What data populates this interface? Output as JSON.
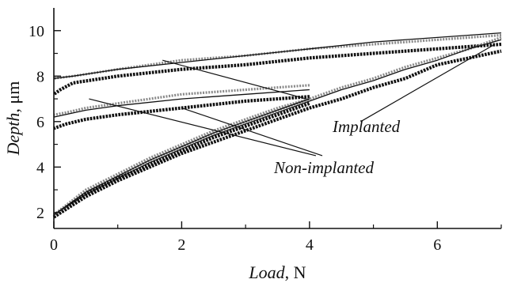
{
  "chart_data": {
    "type": "line",
    "xlabel_italic": "Load",
    "xlabel_unit": ", N",
    "ylabel_italic": "Depth",
    "ylabel_unit": ", μm",
    "xlim": [
      0,
      7
    ],
    "ylim": [
      1.3,
      11
    ],
    "x_ticks": [
      0,
      2,
      4,
      6
    ],
    "y_ticks": [
      2,
      4,
      6,
      8,
      10
    ],
    "x_minor_ticks": [
      1,
      3,
      5,
      7
    ],
    "y_minor_ticks": [
      3,
      5,
      7,
      9
    ],
    "annotations": {
      "implanted": "Implanted",
      "non_implanted": "Non-implanted"
    },
    "series": [
      {
        "style": "dark-dotted",
        "loading": [
          [
            0,
            1.8
          ],
          [
            0.5,
            2.7
          ],
          [
            1,
            3.4
          ],
          [
            1.5,
            4.0
          ],
          [
            2,
            4.6
          ],
          [
            2.5,
            5.1
          ],
          [
            3,
            5.6
          ],
          [
            3.5,
            6.1
          ],
          [
            4,
            6.6
          ],
          [
            4.5,
            7.0
          ],
          [
            5,
            7.5
          ],
          [
            5.5,
            7.9
          ],
          [
            6,
            8.5
          ],
          [
            6.5,
            8.8
          ],
          [
            7,
            9.1
          ]
        ],
        "unloading": [
          [
            7,
            9.4
          ],
          [
            6,
            9.2
          ],
          [
            5,
            9.0
          ],
          [
            4,
            8.8
          ],
          [
            3,
            8.5
          ],
          [
            2,
            8.3
          ],
          [
            1,
            8.0
          ],
          [
            0.3,
            7.7
          ],
          [
            0.1,
            7.4
          ],
          [
            0,
            7.2
          ]
        ]
      },
      {
        "style": "gray-dotted",
        "loading": [
          [
            0,
            1.9
          ],
          [
            0.5,
            2.9
          ],
          [
            1,
            3.6
          ],
          [
            1.5,
            4.3
          ],
          [
            2,
            4.9
          ],
          [
            2.5,
            5.5
          ],
          [
            3,
            6.0
          ],
          [
            3.5,
            6.5
          ],
          [
            4,
            7.0
          ],
          [
            4.5,
            7.5
          ],
          [
            5,
            7.9
          ],
          [
            5.5,
            8.4
          ],
          [
            6,
            8.8
          ],
          [
            6.5,
            9.2
          ],
          [
            7,
            9.7
          ]
        ],
        "unloading": [
          [
            7,
            9.8
          ],
          [
            6,
            9.6
          ],
          [
            5,
            9.4
          ],
          [
            4,
            9.2
          ],
          [
            3,
            8.9
          ],
          [
            2,
            8.7
          ],
          [
            1,
            8.3
          ],
          [
            0.3,
            8.0
          ],
          [
            0,
            7.9
          ]
        ]
      },
      {
        "style": "thin-solid",
        "loading": [
          [
            0,
            1.9
          ],
          [
            0.5,
            2.8
          ],
          [
            1,
            3.5
          ],
          [
            1.5,
            4.2
          ],
          [
            2,
            4.8
          ],
          [
            2.5,
            5.4
          ],
          [
            3,
            5.9
          ],
          [
            3.5,
            6.4
          ],
          [
            4,
            6.9
          ],
          [
            4.5,
            7.4
          ],
          [
            5,
            7.8
          ],
          [
            5.5,
            8.3
          ],
          [
            6,
            8.7
          ],
          [
            6.5,
            9.2
          ],
          [
            7,
            9.6
          ]
        ],
        "unloading": [
          [
            7,
            9.9
          ],
          [
            6,
            9.7
          ],
          [
            5,
            9.5
          ],
          [
            4,
            9.2
          ],
          [
            3,
            8.9
          ],
          [
            2,
            8.6
          ],
          [
            1,
            8.3
          ],
          [
            0.3,
            8.0
          ],
          [
            0,
            7.9
          ]
        ]
      },
      {
        "style": "dark-dotted",
        "loading": [
          [
            0,
            1.8
          ],
          [
            0.5,
            2.8
          ],
          [
            1,
            3.5
          ],
          [
            1.5,
            4.1
          ],
          [
            2,
            4.7
          ],
          [
            2.5,
            5.3
          ],
          [
            3,
            5.8
          ],
          [
            3.5,
            6.3
          ],
          [
            4,
            6.8
          ]
        ],
        "unloading": [
          [
            4,
            7.1
          ],
          [
            3,
            6.9
          ],
          [
            2,
            6.6
          ],
          [
            1,
            6.3
          ],
          [
            0.5,
            6.1
          ],
          [
            0.2,
            5.9
          ],
          [
            0,
            5.7
          ]
        ]
      },
      {
        "style": "gray-dotted",
        "loading": [
          [
            0,
            1.9
          ],
          [
            0.5,
            3.0
          ],
          [
            1,
            3.7
          ],
          [
            1.5,
            4.4
          ],
          [
            2,
            5.0
          ],
          [
            2.5,
            5.6
          ],
          [
            3,
            6.1
          ],
          [
            3.5,
            6.6
          ],
          [
            4,
            7.0
          ]
        ],
        "unloading": [
          [
            4,
            7.6
          ],
          [
            3,
            7.4
          ],
          [
            2,
            7.2
          ],
          [
            1,
            6.8
          ],
          [
            0.5,
            6.6
          ],
          [
            0.2,
            6.4
          ],
          [
            0,
            6.3
          ]
        ]
      },
      {
        "style": "thin-solid",
        "loading": [
          [
            0,
            1.9
          ],
          [
            0.5,
            2.9
          ],
          [
            1,
            3.6
          ],
          [
            1.5,
            4.3
          ],
          [
            2,
            4.9
          ],
          [
            2.5,
            5.5
          ],
          [
            3,
            6.0
          ],
          [
            3.5,
            6.5
          ],
          [
            4,
            7.0
          ]
        ],
        "unloading": [
          [
            4,
            7.4
          ],
          [
            3,
            7.2
          ],
          [
            2,
            7.0
          ],
          [
            1,
            6.7
          ],
          [
            0.5,
            6.5
          ],
          [
            0,
            6.2
          ]
        ]
      }
    ],
    "leader_lines": {
      "implanted": [
        [
          [
            1.7,
            8.7
          ],
          [
            3.95,
            7.0
          ]
        ],
        [
          [
            6.9,
            9.4
          ],
          [
            4.8,
            6.0
          ]
        ]
      ],
      "non_implanted": [
        [
          [
            0.55,
            7.0
          ],
          [
            4.1,
            4.5
          ]
        ],
        [
          [
            2.0,
            6.6
          ],
          [
            4.2,
            4.5
          ]
        ]
      ]
    }
  },
  "colors": {
    "dark": "#111111",
    "gray": "#8a8a8a",
    "axis": "#111111",
    "background": "#ffffff"
  }
}
